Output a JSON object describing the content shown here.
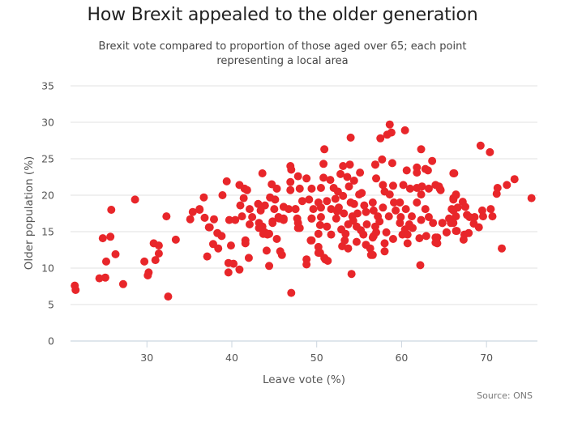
{
  "chart_data": {
    "type": "scatter",
    "title": "How Brexit appealed to the older generation",
    "subtitle": "Brexit vote compared to proportion of those aged over 65; each point representing a local area",
    "xlabel": "Leave vote (%)",
    "ylabel": "Older population (%)",
    "xlim": [
      21,
      76
    ],
    "ylim": [
      0,
      35
    ],
    "xticks": [
      30,
      40,
      50,
      60,
      70
    ],
    "yticks": [
      0,
      5,
      10,
      15,
      20,
      25,
      30,
      35
    ],
    "grid": "horizontal",
    "legend": "none",
    "source": "Source: ONS",
    "marker_color": "#e8262a",
    "points": [
      [
        21.5,
        7.6
      ],
      [
        21.6,
        7.0
      ],
      [
        25.8,
        18.0
      ],
      [
        28.6,
        19.4
      ],
      [
        24.8,
        14.1
      ],
      [
        25.7,
        14.3
      ],
      [
        26.3,
        11.9
      ],
      [
        25.2,
        10.9
      ],
      [
        24.4,
        8.6
      ],
      [
        25.1,
        8.7
      ],
      [
        27.2,
        7.8
      ],
      [
        29.7,
        10.9
      ],
      [
        30.2,
        9.4
      ],
      [
        30.1,
        9.0
      ],
      [
        31.0,
        11.1
      ],
      [
        31.4,
        12.0
      ],
      [
        30.8,
        13.4
      ],
      [
        31.4,
        13.1
      ],
      [
        33.4,
        13.9
      ],
      [
        32.3,
        17.1
      ],
      [
        32.5,
        6.1
      ],
      [
        36.7,
        19.7
      ],
      [
        35.4,
        17.7
      ],
      [
        36.2,
        18.1
      ],
      [
        35.1,
        16.7
      ],
      [
        36.8,
        16.9
      ],
      [
        37.3,
        15.6
      ],
      [
        37.1,
        11.6
      ],
      [
        36.2,
        18.0
      ],
      [
        37.4,
        15.6
      ],
      [
        37.9,
        16.7
      ],
      [
        38.3,
        14.8
      ],
      [
        38.8,
        14.4
      ],
      [
        37.8,
        13.3
      ],
      [
        38.4,
        12.7
      ],
      [
        38.9,
        20.0
      ],
      [
        39.4,
        21.9
      ],
      [
        40.9,
        21.4
      ],
      [
        41.5,
        20.9
      ],
      [
        41.8,
        20.7
      ],
      [
        43.6,
        23.0
      ],
      [
        41.4,
        19.6
      ],
      [
        41.0,
        18.6
      ],
      [
        39.7,
        16.6
      ],
      [
        40.4,
        16.6
      ],
      [
        41.2,
        17.1
      ],
      [
        42.1,
        18.1
      ],
      [
        42.4,
        17.0
      ],
      [
        42.1,
        16.0
      ],
      [
        43.1,
        18.8
      ],
      [
        43.9,
        18.6
      ],
      [
        43.4,
        17.9
      ],
      [
        43.2,
        16.2
      ],
      [
        43.6,
        15.7
      ],
      [
        43.9,
        14.9
      ],
      [
        44.4,
        14.7
      ],
      [
        45.0,
        18.1
      ],
      [
        44.5,
        19.7
      ],
      [
        45.1,
        19.4
      ],
      [
        44.7,
        21.5
      ],
      [
        45.3,
        20.9
      ],
      [
        46.9,
        24.0
      ],
      [
        47.0,
        23.5
      ],
      [
        46.9,
        21.8
      ],
      [
        46.9,
        20.7
      ],
      [
        46.1,
        18.4
      ],
      [
        46.7,
        18.1
      ],
      [
        47.5,
        18.1
      ],
      [
        44.8,
        16.4
      ],
      [
        45.6,
        16.8
      ],
      [
        46.1,
        16.6
      ],
      [
        45.3,
        14.0
      ],
      [
        41.6,
        13.8
      ],
      [
        41.6,
        13.4
      ],
      [
        39.9,
        13.1
      ],
      [
        42.0,
        11.4
      ],
      [
        44.1,
        12.4
      ],
      [
        45.7,
        12.3
      ],
      [
        45.9,
        11.8
      ],
      [
        39.6,
        10.7
      ],
      [
        40.2,
        10.6
      ],
      [
        40.9,
        9.8
      ],
      [
        39.6,
        9.4
      ],
      [
        44.4,
        10.3
      ],
      [
        47.0,
        6.6
      ],
      [
        43.2,
        15.5
      ],
      [
        43.7,
        14.7
      ],
      [
        44.2,
        14.6
      ],
      [
        44.8,
        16.2
      ],
      [
        45.5,
        17.0
      ],
      [
        46.1,
        16.8
      ],
      [
        48.0,
        15.5
      ],
      [
        47.8,
        16.2
      ],
      [
        49.3,
        13.8
      ],
      [
        49.4,
        16.8
      ],
      [
        50.9,
        26.3
      ],
      [
        54.0,
        27.9
      ],
      [
        50.8,
        24.3
      ],
      [
        47.8,
        22.6
      ],
      [
        48.8,
        22.3
      ],
      [
        48.0,
        20.9
      ],
      [
        49.4,
        20.9
      ],
      [
        50.5,
        21.0
      ],
      [
        50.8,
        22.4
      ],
      [
        51.6,
        22.1
      ],
      [
        52.0,
        21.0
      ],
      [
        53.1,
        24.0
      ],
      [
        53.9,
        24.2
      ],
      [
        52.8,
        22.9
      ],
      [
        53.6,
        22.5
      ],
      [
        54.4,
        22.0
      ],
      [
        55.1,
        23.1
      ],
      [
        56.9,
        24.2
      ],
      [
        48.3,
        19.2
      ],
      [
        49.1,
        19.4
      ],
      [
        50.2,
        19.0
      ],
      [
        51.2,
        19.2
      ],
      [
        47.5,
        18.1
      ],
      [
        49.6,
        18.1
      ],
      [
        50.5,
        18.3
      ],
      [
        51.7,
        18.1
      ],
      [
        52.6,
        18.3
      ],
      [
        53.1,
        19.9
      ],
      [
        55.0,
        20.1
      ],
      [
        55.3,
        20.3
      ],
      [
        54.4,
        18.8
      ],
      [
        55.6,
        18.6
      ],
      [
        56.6,
        19.0
      ],
      [
        53.2,
        17.5
      ],
      [
        54.2,
        17.1
      ],
      [
        54.8,
        17.5
      ],
      [
        55.8,
        17.7
      ],
      [
        47.7,
        16.8
      ],
      [
        49.4,
        16.8
      ],
      [
        50.5,
        17.0
      ],
      [
        52.3,
        16.8
      ],
      [
        47.8,
        15.5
      ],
      [
        50.4,
        15.9
      ],
      [
        51.2,
        15.7
      ],
      [
        53.7,
        16.0
      ],
      [
        54.7,
        15.7
      ],
      [
        55.9,
        16.0
      ],
      [
        56.9,
        15.7
      ],
      [
        49.4,
        13.8
      ],
      [
        50.2,
        14.7
      ],
      [
        51.7,
        14.6
      ],
      [
        53.4,
        14.7
      ],
      [
        53.3,
        13.8
      ],
      [
        54.7,
        13.6
      ],
      [
        55.5,
        14.6
      ],
      [
        56.6,
        14.2
      ],
      [
        50.2,
        12.9
      ],
      [
        50.2,
        12.1
      ],
      [
        51.0,
        11.2
      ],
      [
        53.7,
        12.7
      ],
      [
        56.3,
        12.7
      ],
      [
        56.4,
        11.8
      ],
      [
        48.8,
        11.2
      ],
      [
        48.8,
        10.5
      ],
      [
        54.1,
        9.2
      ],
      [
        50.4,
        12.1
      ],
      [
        50.9,
        11.4
      ],
      [
        51.3,
        11.0
      ],
      [
        52.5,
        20.5
      ],
      [
        53.8,
        21.2
      ],
      [
        52.2,
        19.5
      ],
      [
        54.0,
        19.0
      ],
      [
        52.9,
        15.3
      ],
      [
        54.3,
        16.5
      ],
      [
        55.2,
        15.2
      ],
      [
        53.0,
        13.0
      ],
      [
        55.8,
        13.2
      ],
      [
        52.4,
        17.8
      ],
      [
        58.6,
        29.7
      ],
      [
        58.8,
        28.6
      ],
      [
        58.3,
        28.3
      ],
      [
        57.5,
        27.8
      ],
      [
        60.4,
        28.9
      ],
      [
        62.3,
        26.3
      ],
      [
        57.7,
        24.9
      ],
      [
        56.9,
        24.2
      ],
      [
        58.9,
        24.4
      ],
      [
        63.6,
        24.7
      ],
      [
        60.6,
        23.4
      ],
      [
        61.8,
        23.8
      ],
      [
        61.8,
        23.1
      ],
      [
        62.8,
        23.6
      ],
      [
        63.1,
        23.4
      ],
      [
        66.1,
        23.0
      ],
      [
        57.0,
        22.3
      ],
      [
        57.8,
        21.4
      ],
      [
        59.0,
        21.3
      ],
      [
        60.2,
        21.4
      ],
      [
        61.0,
        20.9
      ],
      [
        61.8,
        21.0
      ],
      [
        62.4,
        21.2
      ],
      [
        63.2,
        20.9
      ],
      [
        64.0,
        21.4
      ],
      [
        64.5,
        20.9
      ],
      [
        58.0,
        20.5
      ],
      [
        58.6,
        20.1
      ],
      [
        62.3,
        20.1
      ],
      [
        66.1,
        19.6
      ],
      [
        66.4,
        20.1
      ],
      [
        59.1,
        19.0
      ],
      [
        59.8,
        19.0
      ],
      [
        61.8,
        19.0
      ],
      [
        57.8,
        18.3
      ],
      [
        59.3,
        17.9
      ],
      [
        60.5,
        18.1
      ],
      [
        62.8,
        18.1
      ],
      [
        56.7,
        17.9
      ],
      [
        57.2,
        17.1
      ],
      [
        58.5,
        17.1
      ],
      [
        59.9,
        17.0
      ],
      [
        61.2,
        17.1
      ],
      [
        65.9,
        18.1
      ],
      [
        66.4,
        17.1
      ],
      [
        62.3,
        16.6
      ],
      [
        63.2,
        17.0
      ],
      [
        63.7,
        16.2
      ],
      [
        64.8,
        16.2
      ],
      [
        65.8,
        16.2
      ],
      [
        57.4,
        16.4
      ],
      [
        59.8,
        16.2
      ],
      [
        60.9,
        16.0
      ],
      [
        57.0,
        14.9
      ],
      [
        58.2,
        14.9
      ],
      [
        60.4,
        15.3
      ],
      [
        61.3,
        15.5
      ],
      [
        56.7,
        14.4
      ],
      [
        58.0,
        13.4
      ],
      [
        59.0,
        14.0
      ],
      [
        60.1,
        14.6
      ],
      [
        60.7,
        14.6
      ],
      [
        65.3,
        14.9
      ],
      [
        66.4,
        15.1
      ],
      [
        62.1,
        14.1
      ],
      [
        62.9,
        14.4
      ],
      [
        64.0,
        14.2
      ],
      [
        64.0,
        13.5
      ],
      [
        60.7,
        13.4
      ],
      [
        58.0,
        12.3
      ],
      [
        56.6,
        11.8
      ],
      [
        62.2,
        10.4
      ],
      [
        69.3,
        26.8
      ],
      [
        70.4,
        25.9
      ],
      [
        66.2,
        23.0
      ],
      [
        73.3,
        22.2
      ],
      [
        72.4,
        21.4
      ],
      [
        71.3,
        21.0
      ],
      [
        71.2,
        20.2
      ],
      [
        75.3,
        19.6
      ],
      [
        64.4,
        21.2
      ],
      [
        64.6,
        20.7
      ],
      [
        66.4,
        20.0
      ],
      [
        66.1,
        19.4
      ],
      [
        67.2,
        19.1
      ],
      [
        67.5,
        18.4
      ],
      [
        66.6,
        18.3
      ],
      [
        66.1,
        17.9
      ],
      [
        70.5,
        18.1
      ],
      [
        69.5,
        17.9
      ],
      [
        67.7,
        17.3
      ],
      [
        68.0,
        17.0
      ],
      [
        68.6,
        17.0
      ],
      [
        69.6,
        17.1
      ],
      [
        70.7,
        17.1
      ],
      [
        65.6,
        16.8
      ],
      [
        66.1,
        16.2
      ],
      [
        64.8,
        16.2
      ],
      [
        68.5,
        16.1
      ],
      [
        69.1,
        15.6
      ],
      [
        66.5,
        15.1
      ],
      [
        65.3,
        14.9
      ],
      [
        67.4,
        14.6
      ],
      [
        67.9,
        14.8
      ],
      [
        67.3,
        13.9
      ],
      [
        64.2,
        14.2
      ],
      [
        64.2,
        13.4
      ],
      [
        71.8,
        12.7
      ]
    ]
  }
}
